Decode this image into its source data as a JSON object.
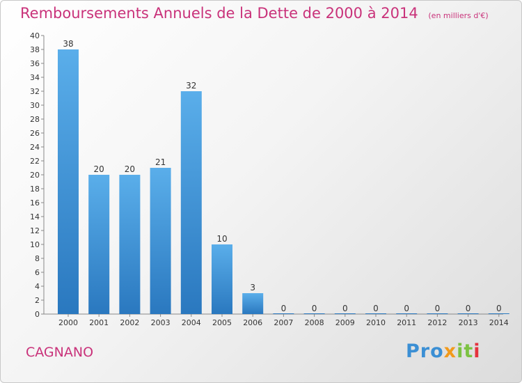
{
  "header": {
    "title": "Remboursements Annuels de la Dette de 2000 à 2014",
    "unit": "(en milliers d'€)"
  },
  "commune": "CAGNANO",
  "logo": {
    "text": "Proxiti",
    "parts": [
      "Pro",
      "x",
      "it",
      "i"
    ]
  },
  "chart_data": {
    "type": "bar",
    "title": "Remboursements Annuels de la Dette de 2000 à 2014",
    "subtitle": "(en milliers d'€)",
    "xlabel": "",
    "ylabel": "",
    "categories": [
      "2000",
      "2001",
      "2002",
      "2003",
      "2004",
      "2005",
      "2006",
      "2007",
      "2008",
      "2009",
      "2010",
      "2011",
      "2012",
      "2013",
      "2014"
    ],
    "values": [
      38,
      20,
      20,
      21,
      32,
      10,
      3,
      0,
      0,
      0,
      0,
      0,
      0,
      0,
      0
    ],
    "ylim": [
      0,
      40
    ],
    "ytick_step": 2,
    "grid": false,
    "legend": "none",
    "colors": {
      "bar_light": "#5aaeea",
      "bar_dark": "#2a78bf",
      "title": "#c9327a"
    }
  }
}
